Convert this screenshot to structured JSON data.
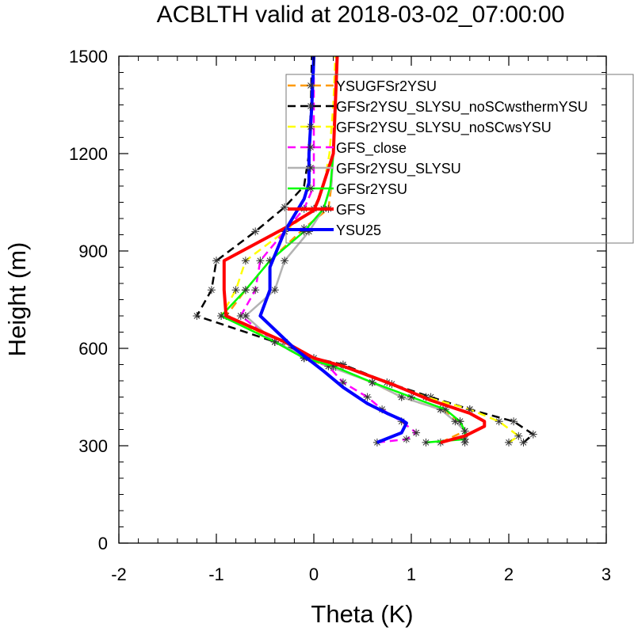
{
  "chart_data": {
    "type": "line",
    "title": "ACBLTH valid at 2018-03-02_07:00:00",
    "xlabel": "Theta (K)",
    "ylabel": "Height (m)",
    "xlim": [
      -2,
      3
    ],
    "ylim": [
      0,
      1500
    ],
    "xticks": [
      -2,
      -1,
      0,
      1,
      2,
      3
    ],
    "xtick_labels": [
      "-2",
      "-1",
      "0",
      "1",
      "2",
      "3"
    ],
    "yticks": [
      0,
      300,
      600,
      900,
      1200,
      1500
    ],
    "ytick_labels": [
      "0",
      "300",
      "600",
      "900",
      "1200",
      "1500"
    ],
    "grid": false,
    "legend_position": "top-right",
    "series": [
      {
        "name": "YSUGFSr2YSU",
        "color": "#ff9900",
        "dash": "dash",
        "marker": "asterisk",
        "width": 2.5,
        "points": [
          [
            1.3,
            310
          ],
          [
            1.55,
            345
          ],
          [
            1.5,
            375
          ],
          [
            1.3,
            412
          ],
          [
            0.9,
            450
          ],
          [
            0.6,
            495
          ],
          [
            0.2,
            540
          ],
          [
            -0.1,
            570
          ],
          [
            -0.4,
            620
          ],
          [
            -0.9,
            700
          ],
          [
            -0.7,
            780
          ],
          [
            -0.45,
            870
          ],
          [
            -0.1,
            970
          ],
          [
            0.15,
            1030
          ],
          [
            0.18,
            1100
          ],
          [
            0.2,
            1200
          ],
          [
            0.22,
            1350
          ],
          [
            0.24,
            1500
          ]
        ]
      },
      {
        "name": "GFSr2YSU_SLYSU_noSCwsthermYSU",
        "color": "#000000",
        "dash": "dash",
        "marker": "asterisk",
        "width": 2.5,
        "points": [
          [
            2.15,
            310
          ],
          [
            2.25,
            335
          ],
          [
            2.05,
            375
          ],
          [
            1.6,
            412
          ],
          [
            1.2,
            450
          ],
          [
            0.8,
            490
          ],
          [
            0.3,
            550
          ],
          [
            0.0,
            570
          ],
          [
            -0.4,
            620
          ],
          [
            -1.2,
            700
          ],
          [
            -1.05,
            780
          ],
          [
            -1.0,
            870
          ],
          [
            -0.6,
            960
          ],
          [
            -0.3,
            1035
          ],
          [
            -0.1,
            1100
          ],
          [
            -0.05,
            1200
          ],
          [
            -0.03,
            1350
          ],
          [
            -0.02,
            1500
          ]
        ]
      },
      {
        "name": "GFSr2YSU_SLYSU_noSCwsYSU",
        "color": "#ffff00",
        "dash": "dash",
        "marker": "asterisk",
        "width": 2.5,
        "points": [
          [
            2.0,
            310
          ],
          [
            2.1,
            330
          ],
          [
            1.9,
            375
          ],
          [
            1.6,
            412
          ],
          [
            1.15,
            450
          ],
          [
            0.75,
            495
          ],
          [
            0.3,
            545
          ],
          [
            0.0,
            570
          ],
          [
            -0.3,
            620
          ],
          [
            -0.95,
            700
          ],
          [
            -0.8,
            780
          ],
          [
            -0.7,
            870
          ],
          [
            -0.3,
            960
          ],
          [
            0.0,
            1030
          ],
          [
            0.1,
            1100
          ],
          [
            0.16,
            1200
          ],
          [
            0.2,
            1350
          ],
          [
            0.22,
            1500
          ]
        ]
      },
      {
        "name": "GFS_close",
        "color": "#ff00ff",
        "dash": "dash",
        "marker": "asterisk",
        "width": 2.5,
        "points": [
          [
            0.65,
            310
          ],
          [
            0.95,
            320
          ],
          [
            1.05,
            340
          ],
          [
            0.9,
            375
          ],
          [
            0.7,
            412
          ],
          [
            0.55,
            450
          ],
          [
            0.3,
            495
          ],
          [
            0.15,
            545
          ],
          [
            -0.1,
            570
          ],
          [
            -0.4,
            620
          ],
          [
            -0.75,
            700
          ],
          [
            -0.6,
            780
          ],
          [
            -0.55,
            870
          ],
          [
            -0.3,
            960
          ],
          [
            -0.1,
            1030
          ],
          [
            0.0,
            1100
          ],
          [
            0.0,
            1200
          ],
          [
            0.0,
            1350
          ],
          [
            0.0,
            1500
          ]
        ]
      },
      {
        "name": "GFSr2YSU_SLYSU",
        "color": "#b3b3b3",
        "dash": "solid",
        "marker": "asterisk",
        "width": 2.5,
        "points": [
          [
            1.55,
            310
          ],
          [
            1.55,
            345
          ],
          [
            1.45,
            375
          ],
          [
            1.3,
            412
          ],
          [
            0.9,
            450
          ],
          [
            0.6,
            495
          ],
          [
            0.15,
            545
          ],
          [
            -0.05,
            570
          ],
          [
            -0.4,
            620
          ],
          [
            -0.7,
            700
          ],
          [
            -0.4,
            780
          ],
          [
            -0.3,
            870
          ],
          [
            -0.05,
            960
          ],
          [
            0.1,
            1030
          ],
          [
            0.18,
            1100
          ],
          [
            0.2,
            1200
          ],
          [
            0.22,
            1350
          ],
          [
            0.24,
            1500
          ]
        ]
      },
      {
        "name": "GFSr2YSU",
        "color": "#00ff00",
        "dash": "solid",
        "marker": "asterisk",
        "width": 2.5,
        "points": [
          [
            1.15,
            310
          ],
          [
            1.55,
            320
          ],
          [
            1.55,
            345
          ],
          [
            1.5,
            375
          ],
          [
            1.35,
            412
          ],
          [
            1.0,
            450
          ],
          [
            0.6,
            495
          ],
          [
            0.2,
            545
          ],
          [
            -0.1,
            570
          ],
          [
            -0.4,
            620
          ],
          [
            -0.95,
            700
          ],
          [
            -0.7,
            780
          ],
          [
            -0.45,
            870
          ],
          [
            -0.1,
            960
          ],
          [
            0.1,
            1030
          ],
          [
            0.17,
            1100
          ],
          [
            0.2,
            1200
          ],
          [
            0.22,
            1350
          ],
          [
            0.24,
            1500
          ]
        ]
      },
      {
        "name": "GFS",
        "color": "#ff0000",
        "dash": "solid",
        "marker": "none",
        "width": 4,
        "points": [
          [
            1.3,
            310
          ],
          [
            1.55,
            330
          ],
          [
            1.75,
            360
          ],
          [
            1.75,
            375
          ],
          [
            1.6,
            400
          ],
          [
            1.2,
            440
          ],
          [
            0.8,
            490
          ],
          [
            0.3,
            545
          ],
          [
            0.0,
            570
          ],
          [
            -0.3,
            620
          ],
          [
            -0.9,
            700
          ],
          [
            -0.92,
            780
          ],
          [
            -0.92,
            870
          ],
          [
            -0.3,
            970
          ],
          [
            0.0,
            1025
          ],
          [
            0.05,
            1060
          ],
          [
            0.2,
            1200
          ],
          [
            0.22,
            1350
          ],
          [
            0.24,
            1500
          ]
        ]
      },
      {
        "name": "YSU25",
        "color": "#0000ff",
        "dash": "solid",
        "marker": "none",
        "width": 4,
        "points": [
          [
            0.65,
            310
          ],
          [
            0.9,
            340
          ],
          [
            0.95,
            370
          ],
          [
            0.9,
            380
          ],
          [
            0.75,
            400
          ],
          [
            0.55,
            430
          ],
          [
            0.3,
            480
          ],
          [
            0.1,
            530
          ],
          [
            -0.2,
            600
          ],
          [
            -0.55,
            700
          ],
          [
            -0.45,
            780
          ],
          [
            -0.45,
            850
          ],
          [
            -0.3,
            960
          ],
          [
            -0.1,
            1060
          ],
          [
            -0.05,
            1110
          ],
          [
            -0.05,
            1200
          ],
          [
            -0.02,
            1350
          ],
          [
            0.0,
            1500
          ]
        ]
      }
    ]
  }
}
